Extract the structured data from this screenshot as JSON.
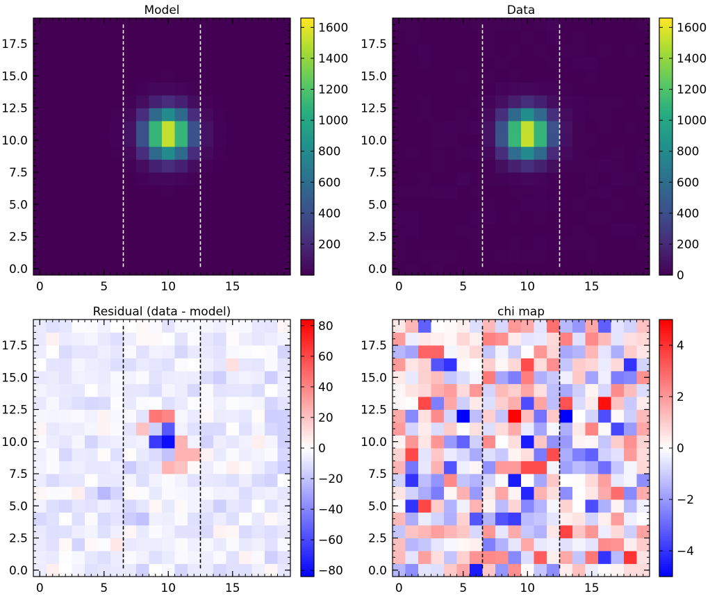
{
  "chart_data": [
    {
      "type": "heatmap",
      "title": "Model",
      "grid": "20x20",
      "colormap": "viridis",
      "xlim": [
        -0.5,
        19.5
      ],
      "ylim": [
        -0.5,
        19.5
      ],
      "xticks": [
        "0",
        "5",
        "10",
        "15"
      ],
      "yticks": [
        "0.0",
        "2.5",
        "5.0",
        "7.5",
        "10.0",
        "12.5",
        "15.0",
        "17.5"
      ],
      "vlines_x": [
        6.5,
        12.5
      ],
      "vline_color": "#ffffff",
      "colorbar_range": [
        0,
        1660
      ],
      "colorbar_ticks": [
        "200",
        "400",
        "600",
        "800",
        "1000",
        "1200",
        "1400",
        "1600"
      ],
      "peak": {
        "x": 10,
        "y": 10.5,
        "value": 1650
      }
    },
    {
      "type": "heatmap",
      "title": "Data",
      "grid": "20x20",
      "colormap": "viridis",
      "xlim": [
        -0.5,
        19.5
      ],
      "ylim": [
        -0.5,
        19.5
      ],
      "xticks": [
        "0",
        "5",
        "10",
        "15"
      ],
      "yticks": [
        "0.0",
        "2.5",
        "5.0",
        "7.5",
        "10.0",
        "12.5",
        "15.0",
        "17.5"
      ],
      "vlines_x": [
        6.5,
        12.5
      ],
      "vline_color": "#ffffff",
      "colorbar_range": [
        0,
        1660
      ],
      "colorbar_ticks": [
        "0",
        "200",
        "400",
        "600",
        "800",
        "1000",
        "1200",
        "1400",
        "1600"
      ],
      "peak": {
        "x": 10,
        "y": 10.5,
        "value": 1650
      }
    },
    {
      "type": "heatmap",
      "title": "Residual (data - model)",
      "grid": "20x20",
      "colormap": "bwr",
      "xlim": [
        -0.5,
        19.5
      ],
      "ylim": [
        -0.5,
        19.5
      ],
      "xticks": [
        "0",
        "5",
        "10",
        "15"
      ],
      "yticks": [
        "0.0",
        "2.5",
        "5.0",
        "7.5",
        "10.0",
        "12.5",
        "15.0",
        "17.5"
      ],
      "vlines_x": [
        6.5,
        12.5
      ],
      "vline_color": "#000000",
      "colorbar_range": [
        -84,
        84
      ],
      "colorbar_ticks": [
        "−80",
        "−60",
        "−40",
        "−20",
        "0",
        "20",
        "40",
        "60",
        "80"
      ],
      "notable_cells": [
        {
          "x": 9,
          "y": 12,
          "value": 45
        },
        {
          "x": 10,
          "y": 12,
          "value": 40
        },
        {
          "x": 9,
          "y": 11,
          "value": -15
        },
        {
          "x": 10,
          "y": 11,
          "value": -55
        },
        {
          "x": 9,
          "y": 10,
          "value": -65
        },
        {
          "x": 10,
          "y": 10,
          "value": -80
        },
        {
          "x": 11,
          "y": 10,
          "value": 25
        },
        {
          "x": 8,
          "y": 11,
          "value": 20
        },
        {
          "x": 10,
          "y": 8,
          "value": 25
        },
        {
          "x": 11,
          "y": 8,
          "value": 20
        },
        {
          "x": 11,
          "y": 9,
          "value": 25
        },
        {
          "x": 12,
          "y": 9,
          "value": 25
        },
        {
          "x": 10,
          "y": 9,
          "value": -20
        }
      ]
    },
    {
      "type": "heatmap",
      "title": "chi map",
      "grid": "20x20",
      "colormap": "bwr",
      "xlim": [
        -0.5,
        19.5
      ],
      "ylim": [
        -0.5,
        19.5
      ],
      "xticks": [
        "0",
        "5",
        "10",
        "15"
      ],
      "yticks": [
        "0.0",
        "2.5",
        "5.0",
        "7.5",
        "10.0",
        "12.5",
        "15.0",
        "17.5"
      ],
      "vlines_x": [
        6.5,
        12.5
      ],
      "vline_color": "#000000",
      "colorbar_range": [
        -5,
        5
      ],
      "colorbar_ticks": [
        "−4",
        "−2",
        "0",
        "2",
        "4"
      ],
      "notable_cells": [
        {
          "x": 9,
          "y": 12,
          "value": 5
        },
        {
          "x": 13,
          "y": 12,
          "value": -5
        },
        {
          "x": 10,
          "y": 10,
          "value": -4.5
        },
        {
          "x": 9,
          "y": 7,
          "value": -4.5
        },
        {
          "x": 10,
          "y": 8,
          "value": 3.5
        },
        {
          "x": 11,
          "y": 8,
          "value": 3.5
        },
        {
          "x": 12,
          "y": 9,
          "value": 3.5
        },
        {
          "x": 18,
          "y": 1,
          "value": 4
        },
        {
          "x": 4,
          "y": 16,
          "value": -4
        },
        {
          "x": 18,
          "y": 16,
          "value": -4
        },
        {
          "x": 1,
          "y": 7,
          "value": -4
        },
        {
          "x": 1,
          "y": 5,
          "value": -4
        },
        {
          "x": 6,
          "y": 0,
          "value": -4.5
        },
        {
          "x": 10,
          "y": 13,
          "value": -3.5
        },
        {
          "x": 15,
          "y": 5,
          "value": -3.5
        }
      ]
    }
  ]
}
